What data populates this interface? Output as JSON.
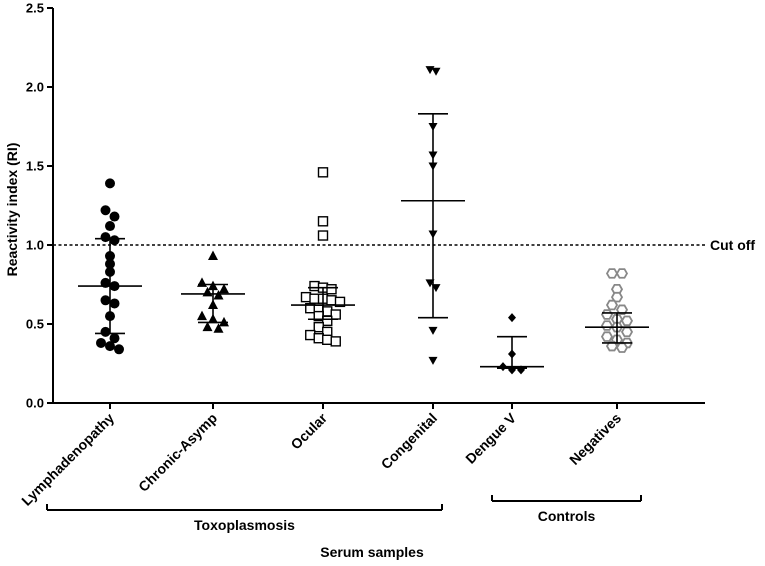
{
  "chart_data": {
    "type": "scatter",
    "ylabel": "Reactivity index (RI)",
    "xlabel": "Serum samples",
    "ylim": [
      0,
      2.5
    ],
    "yticks": [
      "0.0",
      "0.5",
      "1.0",
      "1.5",
      "2.0",
      "2.5"
    ],
    "cutoff": {
      "value": 1.0,
      "label": "Cut off"
    },
    "groups": [
      {
        "label": "Toxoplasmosis",
        "categories": [
          0,
          1,
          2,
          3
        ]
      },
      {
        "label": "Controls",
        "categories": [
          4,
          5
        ]
      }
    ],
    "series": [
      {
        "name": "Lymphadenopathy",
        "marker": "circle",
        "mean": 0.74,
        "sd_low": 0.44,
        "sd_high": 1.04,
        "values": [
          1.39,
          1.22,
          1.18,
          1.12,
          1.05,
          1.03,
          0.93,
          0.88,
          0.83,
          0.76,
          0.74,
          0.65,
          0.63,
          0.55,
          0.45,
          0.41,
          0.38,
          0.36,
          0.34
        ]
      },
      {
        "name": "Chronic-Asymp",
        "marker": "triangle",
        "mean": 0.69,
        "sd_low": 0.51,
        "sd_high": 0.75,
        "values": [
          0.93,
          0.76,
          0.74,
          0.72,
          0.7,
          0.68,
          0.62,
          0.55,
          0.53,
          0.51,
          0.48,
          0.47
        ]
      },
      {
        "name": "Ocular",
        "marker": "square-open",
        "mean": 0.62,
        "sd_low": 0.53,
        "sd_high": 0.73,
        "values": [
          1.46,
          1.15,
          1.06,
          0.74,
          0.73,
          0.72,
          0.67,
          0.66,
          0.66,
          0.65,
          0.64,
          0.6,
          0.59,
          0.58,
          0.56,
          0.55,
          0.52,
          0.48,
          0.45,
          0.43,
          0.41,
          0.4,
          0.39
        ]
      },
      {
        "name": "Congenital",
        "marker": "triangle-down",
        "mean": 1.28,
        "sd_low": 0.54,
        "sd_high": 1.83,
        "values": [
          2.11,
          2.1,
          1.75,
          1.57,
          1.5,
          1.07,
          0.76,
          0.73,
          0.46,
          0.27
        ]
      },
      {
        "name": "Dengue V",
        "marker": "diamond",
        "mean": 0.23,
        "sd_low": 0.22,
        "sd_high": 0.42,
        "values": [
          0.54,
          0.31,
          0.23,
          0.21,
          0.21
        ]
      },
      {
        "name": "Negatives",
        "marker": "hexagon-open",
        "mean": 0.48,
        "sd_low": 0.38,
        "sd_high": 0.57,
        "values": [
          0.82,
          0.82,
          0.72,
          0.67,
          0.62,
          0.59,
          0.56,
          0.53,
          0.52,
          0.49,
          0.48,
          0.45,
          0.42,
          0.4,
          0.38,
          0.36,
          0.35
        ]
      }
    ]
  }
}
